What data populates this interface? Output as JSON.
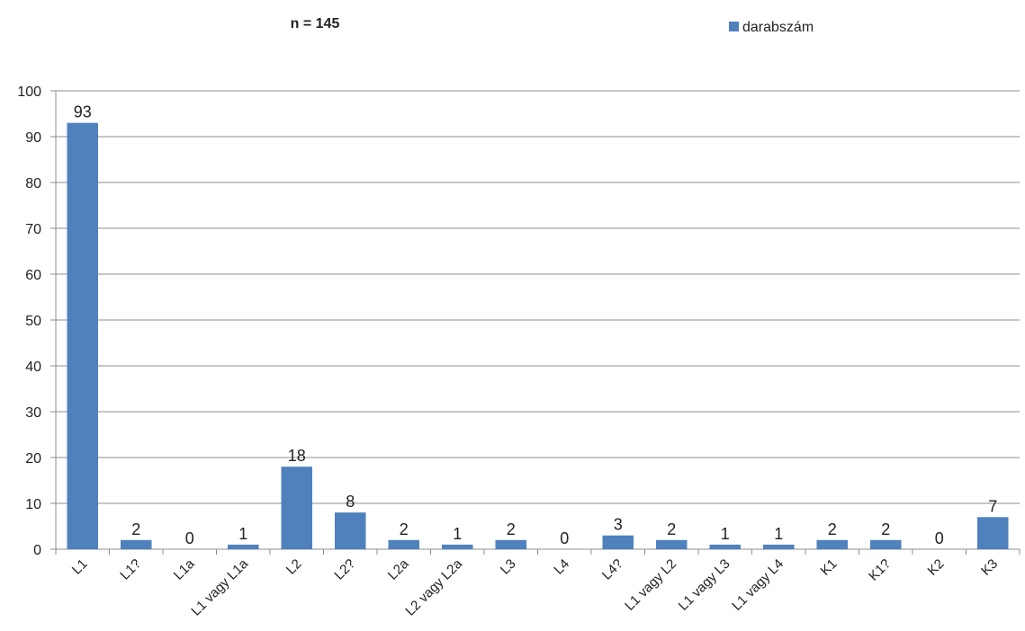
{
  "chart_data": {
    "type": "bar",
    "title": "n = 145",
    "xlabel": "",
    "ylabel": "",
    "ylim": [
      0,
      100
    ],
    "y_ticks": [
      0,
      10,
      20,
      30,
      40,
      50,
      60,
      70,
      80,
      90,
      100
    ],
    "grid": true,
    "legend_position": "top-right",
    "categories": [
      "L1",
      "L1?",
      "L1a",
      "L1 vagy L1a",
      "L2",
      "L2?",
      "L2a",
      "L2 vagy L2a",
      "L3",
      "L4",
      "L4?",
      "L1 vagy L2",
      "L1 vagy L3",
      "L1 vagy L4",
      "K1",
      "K1?",
      "K2",
      "K3"
    ],
    "series": [
      {
        "name": "darabszám",
        "color": "#4f81bd",
        "values": [
          93,
          2,
          0,
          1,
          18,
          8,
          2,
          1,
          2,
          0,
          3,
          2,
          1,
          1,
          2,
          2,
          0,
          7
        ]
      }
    ]
  }
}
